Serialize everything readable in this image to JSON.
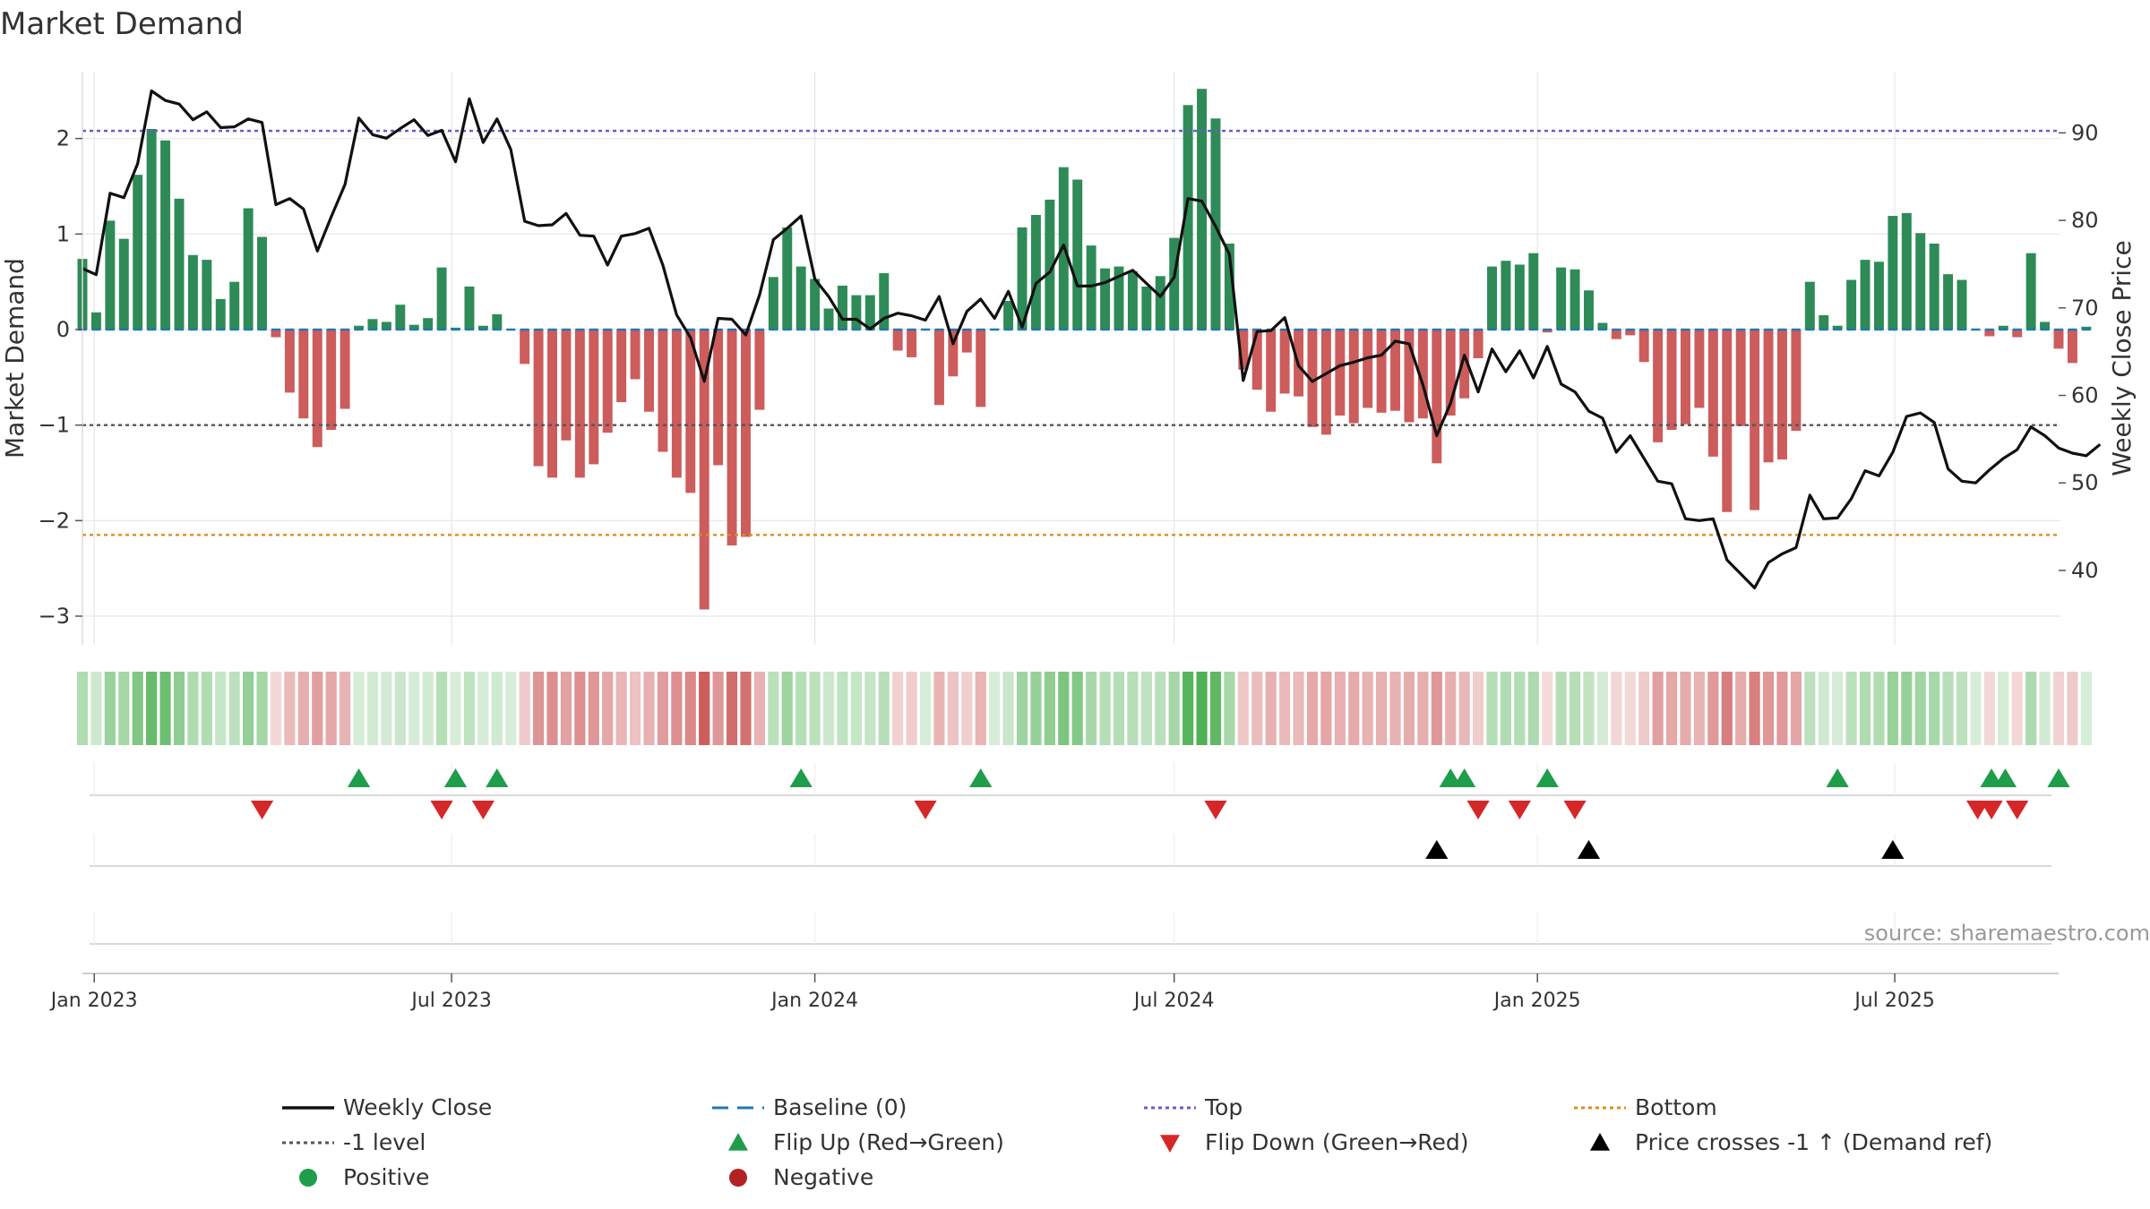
{
  "title": "Market Demand",
  "source": "source: sharemaestro.com",
  "colors": {
    "positive": "#2e8b57",
    "negative": "#cd5c5c",
    "price": "#111111",
    "baseline": "#1f77b4",
    "top": "#6a5acd",
    "minus1": "#555555",
    "bottom": "#e08a1e",
    "flip_up": "#1f9d4a",
    "flip_down": "#d62728",
    "cross": "#000000",
    "neg_dot": "#b22222",
    "pos_dot": "#1f9d4a",
    "grid": "#e6e6e6",
    "text": "#333333"
  },
  "chart_data": {
    "type": "bar",
    "title": "Market Demand",
    "ylabel": "Market Demand",
    "y2label": "Weekly Close Price",
    "ylim": [
      -3.3,
      2.7
    ],
    "y2lim": [
      31.5,
      97
    ],
    "yticks": [
      {
        "v": 2,
        "label": "2"
      },
      {
        "v": 1,
        "label": "1"
      },
      {
        "v": 0,
        "label": "0"
      },
      {
        "v": -1,
        "label": "−1"
      },
      {
        "v": -2,
        "label": "−2"
      },
      {
        "v": -3,
        "label": "−3"
      }
    ],
    "y2ticks": [
      {
        "v": 90,
        "label": "90"
      },
      {
        "v": 80,
        "label": "80"
      },
      {
        "v": 70,
        "label": "70"
      },
      {
        "v": 60,
        "label": "60"
      },
      {
        "v": 50,
        "label": "50"
      },
      {
        "v": 40,
        "label": "40"
      }
    ],
    "x_start": "2022-12-26",
    "x_end": "2025-09-22",
    "xticks": [
      {
        "date": "2023-01-01",
        "label": "Jan 2023"
      },
      {
        "date": "2023-07-01",
        "label": "Jul 2023"
      },
      {
        "date": "2024-01-01",
        "label": "Jan 2024"
      },
      {
        "date": "2024-07-01",
        "label": "Jul 2024"
      },
      {
        "date": "2025-01-01",
        "label": "Jan 2025"
      },
      {
        "date": "2025-07-01",
        "label": "Jul 2025"
      }
    ],
    "reference_lines": {
      "top": 2.08,
      "minus1": -1.0,
      "bottom": -2.15,
      "baseline": 0
    },
    "series": [
      {
        "name": "Market Demand",
        "axis": "left",
        "values": [
          0.74,
          0.18,
          1.14,
          0.95,
          1.62,
          2.1,
          1.98,
          1.37,
          0.78,
          0.73,
          0.32,
          0.5,
          1.27,
          0.97,
          -0.08,
          -0.66,
          -0.93,
          -1.23,
          -1.05,
          -0.83,
          0.04,
          0.11,
          0.08,
          0.26,
          0.05,
          0.12,
          0.65,
          0.02,
          0.45,
          0.04,
          0.16,
          0.0,
          -0.36,
          -1.43,
          -1.55,
          -1.16,
          -1.55,
          -1.41,
          -1.08,
          -0.76,
          -0.52,
          -0.86,
          -1.28,
          -1.55,
          -1.71,
          -2.93,
          -1.42,
          -2.26,
          -2.17,
          -0.84,
          0.55,
          1.07,
          0.66,
          0.53,
          0.22,
          0.46,
          0.36,
          0.36,
          0.59,
          -0.22,
          -0.29,
          0.0,
          -0.79,
          -0.49,
          -0.24,
          -0.81,
          0.01,
          0.3,
          1.07,
          1.2,
          1.36,
          1.7,
          1.57,
          0.88,
          0.64,
          0.66,
          0.61,
          0.45,
          0.56,
          0.96,
          2.35,
          2.52,
          2.21,
          0.9,
          -0.42,
          -0.63,
          -0.86,
          -0.67,
          -0.7,
          -1.02,
          -1.1,
          -0.9,
          -0.98,
          -0.82,
          -0.87,
          -0.85,
          -0.97,
          -0.93,
          -1.4,
          -0.9,
          -0.72,
          -0.3,
          0.66,
          0.72,
          0.68,
          0.8,
          -0.03,
          0.65,
          0.63,
          0.41,
          0.07,
          -0.1,
          -0.06,
          -0.34,
          -1.18,
          -1.05,
          -0.99,
          -0.82,
          -1.33,
          -1.91,
          -1.01,
          -1.89,
          -1.39,
          -1.36,
          -1.06,
          0.5,
          0.15,
          0.04,
          0.52,
          0.73,
          0.71,
          1.19,
          1.22,
          1.01,
          0.9,
          0.58,
          0.52,
          0.0,
          -0.07,
          0.04,
          -0.08,
          0.8,
          0.08,
          -0.2,
          -0.35,
          0.03
        ]
      },
      {
        "name": "Weekly Close",
        "axis": "right",
        "values": [
          74.5,
          73.8,
          83.1,
          82.6,
          86.5,
          94.8,
          93.7,
          93.3,
          91.5,
          92.4,
          90.6,
          90.7,
          91.6,
          91.2,
          81.8,
          82.5,
          81.3,
          76.5,
          80.4,
          84.1,
          91.7,
          89.8,
          89.4,
          90.5,
          91.5,
          89.7,
          90.3,
          86.7,
          93.9,
          88.9,
          91.6,
          88.1,
          79.9,
          79.4,
          79.5,
          80.8,
          78.3,
          78.2,
          74.9,
          78.2,
          78.5,
          79.1,
          74.9,
          69.2,
          66.6,
          61.6,
          68.8,
          68.7,
          66.9,
          71.5,
          77.8,
          79.1,
          80.5,
          73.3,
          71.3,
          68.7,
          68.7,
          67.6,
          68.8,
          69.4,
          69.1,
          68.6,
          71.3,
          65.9,
          69.6,
          71.0,
          68.8,
          71.9,
          67.8,
          72.8,
          74.1,
          77.2,
          72.5,
          72.5,
          72.9,
          73.6,
          74.3,
          72.8,
          71.3,
          73.5,
          82.5,
          82.2,
          79.3,
          76.1,
          61.7,
          67.3,
          67.4,
          68.9,
          63.4,
          61.6,
          62.5,
          63.4,
          63.8,
          64.3,
          64.6,
          66.2,
          65.9,
          61.2,
          55.4,
          59.1,
          64.6,
          60.4,
          65.3,
          62.7,
          65.1,
          62.0,
          65.6,
          61.3,
          60.4,
          58.2,
          57.4,
          53.5,
          55.4,
          52.8,
          50.2,
          49.9,
          45.9,
          45.7,
          45.9,
          41.2,
          39.6,
          38.0,
          40.9,
          41.9,
          42.6,
          48.6,
          45.9,
          46.0,
          48.2,
          51.4,
          50.8,
          53.5,
          57.6,
          58.0,
          56.9,
          51.6,
          50.2,
          50.0,
          51.5,
          52.8,
          53.8,
          56.4,
          55.4,
          54.0,
          53.4,
          53.1,
          54.4
        ]
      }
    ],
    "flip_up_dates": [
      "2023-05-15",
      "2023-07-03",
      "2023-07-24",
      "2023-12-25",
      "2024-03-25",
      "2024-11-18",
      "2024-11-25",
      "2025-01-06",
      "2025-06-02",
      "2025-08-19",
      "2025-08-26",
      "2025-09-22"
    ],
    "flip_down_dates": [
      "2023-03-27",
      "2023-06-26",
      "2023-07-17",
      "2024-02-26",
      "2024-07-22",
      "2024-12-02",
      "2024-12-23",
      "2025-01-20",
      "2025-08-12",
      "2025-08-19",
      "2025-09-01"
    ],
    "cross_dates": [
      "2024-11-11",
      "2025-01-27",
      "2025-06-30"
    ],
    "legend": {
      "placement": "bottom",
      "entries": [
        {
          "key": "weekly_close",
          "label": "Weekly Close"
        },
        {
          "key": "baseline",
          "label": "Baseline (0)"
        },
        {
          "key": "top",
          "label": "Top"
        },
        {
          "key": "bottom",
          "label": "Bottom"
        },
        {
          "key": "minus1",
          "label": "-1 level"
        },
        {
          "key": "flip_up",
          "label": "Flip Up (Red→Green)"
        },
        {
          "key": "flip_down",
          "label": "Flip Down (Green→Red)"
        },
        {
          "key": "cross",
          "label": "Price crosses -1 ↑ (Demand ref)"
        },
        {
          "key": "positive",
          "label": "Positive"
        },
        {
          "key": "negative",
          "label": "Negative"
        }
      ]
    }
  }
}
